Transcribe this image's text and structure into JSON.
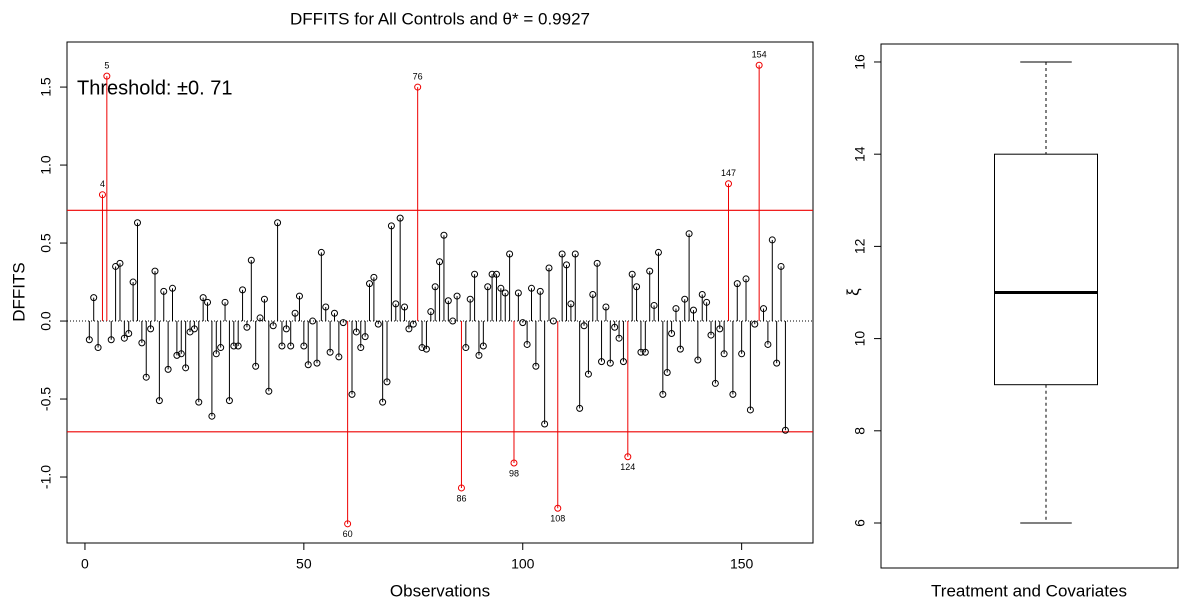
{
  "chart_data": [
    {
      "type": "stem",
      "title": "DFFITS for All Controls and θ* = 0.9927",
      "xlabel": "Observations",
      "ylabel": "DFFITS",
      "annotation": "Threshold: ±0. 71",
      "x": [
        1,
        2,
        3,
        4,
        5,
        6,
        7,
        8,
        9,
        10,
        11,
        12,
        13,
        14,
        15,
        16,
        17,
        18,
        19,
        20,
        21,
        22,
        23,
        24,
        25,
        26,
        27,
        28,
        29,
        30,
        31,
        32,
        33,
        34,
        35,
        36,
        37,
        38,
        39,
        40,
        41,
        42,
        43,
        44,
        45,
        46,
        47,
        48,
        49,
        50,
        51,
        52,
        53,
        54,
        55,
        56,
        57,
        58,
        59,
        60,
        61,
        62,
        63,
        64,
        65,
        66,
        67,
        68,
        69,
        70,
        71,
        72,
        73,
        74,
        75,
        76,
        77,
        78,
        79,
        80,
        81,
        82,
        83,
        84,
        85,
        86,
        87,
        88,
        89,
        90,
        91,
        92,
        93,
        94,
        95,
        96,
        97,
        98,
        99,
        100,
        101,
        102,
        103,
        104,
        105,
        106,
        107,
        108,
        109,
        110,
        111,
        112,
        113,
        114,
        115,
        116,
        117,
        118,
        119,
        120,
        121,
        122,
        123,
        124,
        125,
        126,
        127,
        128,
        129,
        130,
        131,
        132,
        133,
        134,
        135,
        136,
        137,
        138,
        139,
        140,
        141,
        142,
        143,
        144,
        145,
        146,
        147,
        148,
        149,
        150,
        151,
        152,
        153,
        154,
        155,
        156,
        157,
        158,
        159,
        160
      ],
      "values": [
        -0.12,
        0.15,
        -0.17,
        0.81,
        1.57,
        -0.12,
        0.35,
        0.37,
        -0.11,
        -0.08,
        0.25,
        0.63,
        -0.14,
        -0.36,
        -0.05,
        0.32,
        -0.51,
        0.19,
        -0.31,
        0.21,
        -0.22,
        -0.21,
        -0.3,
        -0.07,
        -0.05,
        -0.52,
        0.15,
        0.12,
        -0.61,
        -0.21,
        -0.17,
        0.12,
        -0.51,
        -0.16,
        -0.16,
        0.2,
        -0.04,
        0.39,
        -0.29,
        0.02,
        0.14,
        -0.45,
        -0.03,
        0.63,
        -0.16,
        -0.05,
        -0.16,
        0.05,
        0.16,
        -0.16,
        -0.28,
        0.0,
        -0.27,
        0.44,
        0.09,
        -0.2,
        0.05,
        -0.23,
        -0.01,
        -1.3,
        -0.47,
        -0.07,
        -0.17,
        -0.1,
        0.24,
        0.28,
        -0.02,
        -0.52,
        -0.39,
        0.61,
        0.11,
        0.66,
        0.09,
        -0.05,
        -0.02,
        1.5,
        -0.17,
        -0.18,
        0.06,
        0.22,
        0.38,
        0.55,
        0.13,
        0.0,
        0.16,
        -1.07,
        -0.17,
        0.14,
        0.3,
        -0.22,
        -0.16,
        0.22,
        0.3,
        0.3,
        0.21,
        0.18,
        0.43,
        -0.91,
        0.18,
        -0.01,
        -0.15,
        0.21,
        -0.29,
        0.19,
        -0.66,
        0.34,
        0.0,
        -1.2,
        0.43,
        0.36,
        0.11,
        0.43,
        -0.56,
        -0.03,
        -0.34,
        0.17,
        0.37,
        -0.26,
        0.09,
        -0.27,
        -0.04,
        -0.11,
        -0.26,
        -0.87,
        0.3,
        0.22,
        -0.2,
        -0.2,
        0.32,
        0.1,
        0.44,
        -0.47,
        -0.33,
        -0.08,
        0.08,
        -0.18,
        0.14,
        0.56,
        0.07,
        -0.25,
        0.17,
        0.12,
        -0.09,
        -0.4,
        -0.05,
        -0.21,
        0.88,
        -0.47,
        0.24,
        -0.21,
        0.27,
        -0.57,
        -0.02,
        1.64,
        0.08,
        -0.15,
        0.52,
        -0.27,
        0.35,
        -0.7
      ],
      "color": "#000000",
      "highlight_color": "#ee0000",
      "highlight": [
        4,
        5,
        60,
        76,
        86,
        98,
        108,
        124,
        147,
        154
      ],
      "hlines": [
        0.71,
        -0.71
      ],
      "baseline": 0,
      "xlim": [
        -4.1,
        166.3
      ],
      "xticks": [
        0,
        50,
        100,
        150
      ],
      "ylim": [
        -1.423,
        1.789
      ],
      "yticks": [
        {
          "value": -1,
          "label": "-1.0"
        },
        -0.5,
        {
          "value": 0,
          "label": "0.0"
        },
        0.5,
        {
          "value": 1,
          "label": "1.0"
        },
        1.5
      ]
    },
    {
      "type": "box",
      "xlabel": "Treatment and Covariates",
      "ylabel": "ξ",
      "min": 6,
      "q1": 9,
      "median": 11,
      "q3": 14,
      "max": 16,
      "ylim": [
        5.024,
        16.39
      ],
      "yticks": [
        6,
        8,
        10,
        12,
        14,
        16
      ]
    }
  ]
}
